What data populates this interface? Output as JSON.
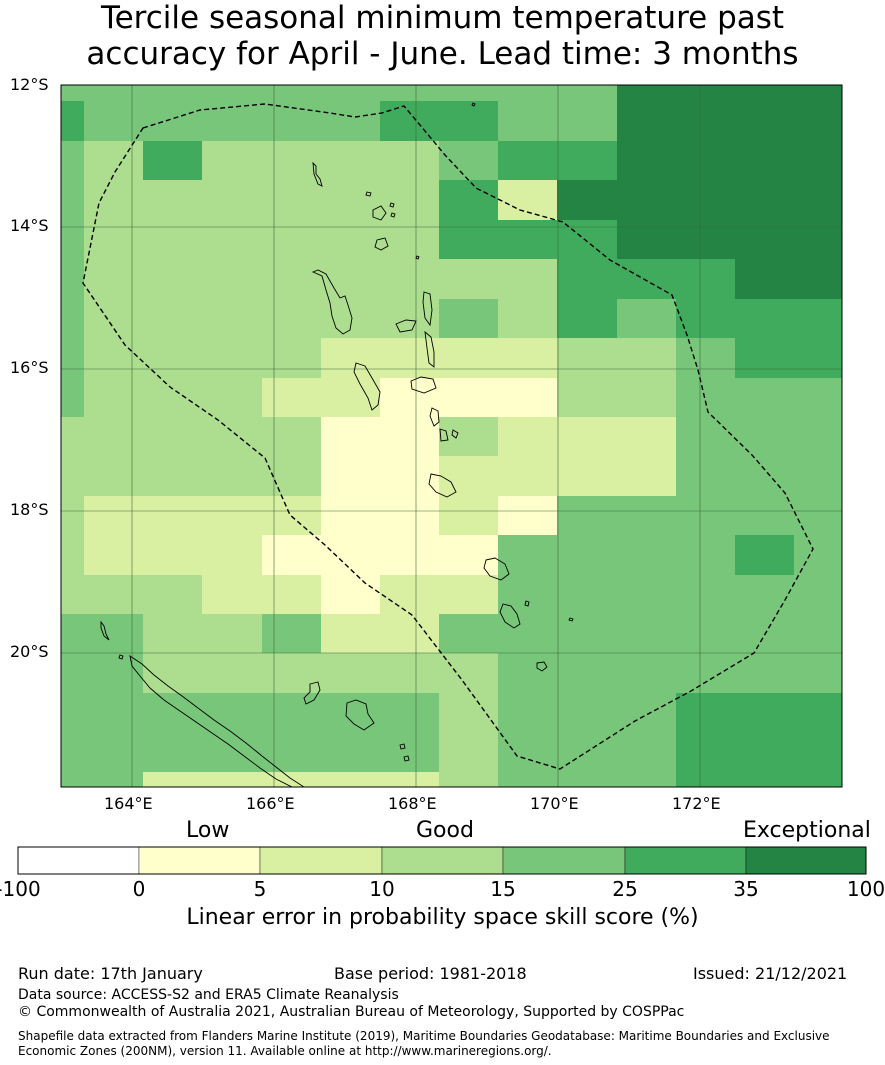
{
  "title_lines": [
    "Tercile seasonal minimum temperature past",
    "accuracy for April - June. Lead time: 3 months"
  ],
  "map": {
    "lat_labels": [
      "12°S",
      "14°S",
      "16°S",
      "18°S",
      "20°S"
    ],
    "lon_labels": [
      "164°E",
      "166°E",
      "168°E",
      "170°E",
      "172°E"
    ]
  },
  "colorbar": {
    "category_low": "Low",
    "category_good": "Good",
    "category_exceptional": "Exceptional",
    "ticks": [
      "-100",
      "0",
      "5",
      "10",
      "15",
      "25",
      "35",
      "100"
    ],
    "colors": [
      "#ffffff",
      "#ffffcc",
      "#d9f0a3",
      "#addd8e",
      "#78c679",
      "#41ab5d",
      "#238443"
    ],
    "label": "Linear error in probability space skill score (%)"
  },
  "footer": {
    "run_date": "Run date: 17th January",
    "base_period": "Base period: 1981-2018",
    "issued": "Issued: 21/12/2021",
    "data_source": "Data source: ACCESS-S2 and ERA5 Climate Reanalysis",
    "copyright": "© Commonwealth of Australia 2021, Australian Bureau of Meteorology, Supported by COSPPac",
    "shapefile_line1": "Shapefile data extracted from Flanders Marine Institute (2019), Maritime Boundaries Geodatabase: Maritime Boundaries and Exclusive",
    "shapefile_line2": "Economic Zones (200NM), version 11. Available online at http://www.marineregions.org/."
  }
}
